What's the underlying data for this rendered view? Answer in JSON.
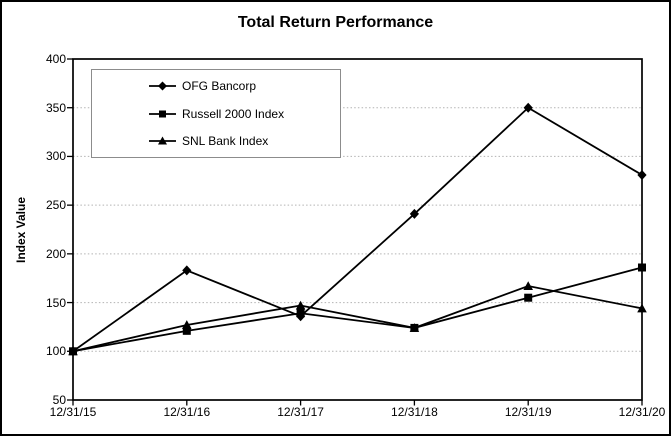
{
  "chart_data": {
    "type": "line",
    "title": "Total Return Performance",
    "xlabel": "",
    "ylabel": "Index Value",
    "categories": [
      "12/31/15",
      "12/31/16",
      "12/31/17",
      "12/31/18",
      "12/31/19",
      "12/31/20"
    ],
    "series": [
      {
        "name": "OFG Bancorp",
        "marker": "diamond",
        "values": [
          100,
          183,
          136,
          241,
          350,
          281
        ]
      },
      {
        "name": "Russell 2000 Index",
        "marker": "square",
        "values": [
          100,
          121,
          139,
          124,
          155,
          186
        ]
      },
      {
        "name": "SNL Bank Index",
        "marker": "triangle",
        "values": [
          100,
          127,
          147,
          124,
          167,
          144
        ]
      }
    ],
    "ylim": [
      50,
      400
    ],
    "yticks": [
      400,
      350,
      300,
      250,
      200,
      150,
      100,
      50
    ],
    "grid": "dotted horizontal gridlines at each 50-unit level",
    "legend_position": "top-left inside plot",
    "colors": {
      "line": "#000000",
      "marker": "#000000",
      "frame": "#000000",
      "grid": "#b3b3b3",
      "legend_border": "#8c8c8c",
      "background": "#ffffff",
      "text": "#000000"
    }
  }
}
